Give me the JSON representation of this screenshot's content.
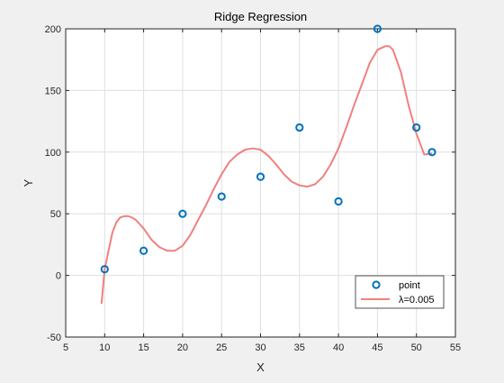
{
  "chart_data": {
    "type": "line",
    "title": "Ridge Regression",
    "xlabel": "X",
    "ylabel": "Y",
    "xlim": [
      5,
      55
    ],
    "ylim": [
      -50,
      200
    ],
    "xticks": [
      5,
      10,
      15,
      20,
      25,
      30,
      35,
      40,
      45,
      50,
      55
    ],
    "yticks": [
      -50,
      0,
      50,
      100,
      150,
      200
    ],
    "xtick_labels": [
      "5",
      "10",
      "15",
      "20",
      "25",
      "30",
      "35",
      "40",
      "45",
      "50",
      "55"
    ],
    "ytick_labels": [
      "-50",
      "0",
      "50",
      "100",
      "150",
      "200"
    ],
    "grid": true,
    "legend_position": "bottom-right",
    "series": [
      {
        "name": "point",
        "kind": "scatter",
        "color": "#0072bd",
        "marker": "circle",
        "x": [
          10,
          15,
          20,
          25,
          30,
          35,
          40,
          45,
          50,
          52
        ],
        "y": [
          5,
          20,
          50,
          64,
          80,
          120,
          60,
          200,
          120,
          100
        ]
      },
      {
        "name": "λ=0.005",
        "kind": "line",
        "color": "#f08080",
        "x": [
          9.6,
          10,
          10.5,
          11,
          11.5,
          12,
          12.5,
          13,
          13.5,
          14,
          15,
          16,
          17,
          18,
          19,
          20,
          21,
          22,
          23,
          24,
          25,
          26,
          27,
          28,
          29,
          30,
          31,
          32,
          33,
          34,
          35,
          36,
          37,
          38,
          39,
          40,
          41,
          42,
          43,
          44,
          45,
          46,
          46.5,
          47,
          48,
          49,
          50,
          51,
          52
        ],
        "y": [
          -23,
          5,
          20,
          35,
          43,
          47,
          48,
          48,
          47,
          45,
          38,
          29,
          23,
          20,
          20,
          24,
          33,
          45,
          57,
          70,
          82,
          92,
          98,
          102,
          103,
          102,
          97,
          90,
          82,
          76,
          73,
          72,
          74,
          80,
          90,
          103,
          120,
          138,
          155,
          172,
          183,
          186,
          186,
          183,
          165,
          138,
          115,
          98,
          99
        ]
      }
    ]
  }
}
